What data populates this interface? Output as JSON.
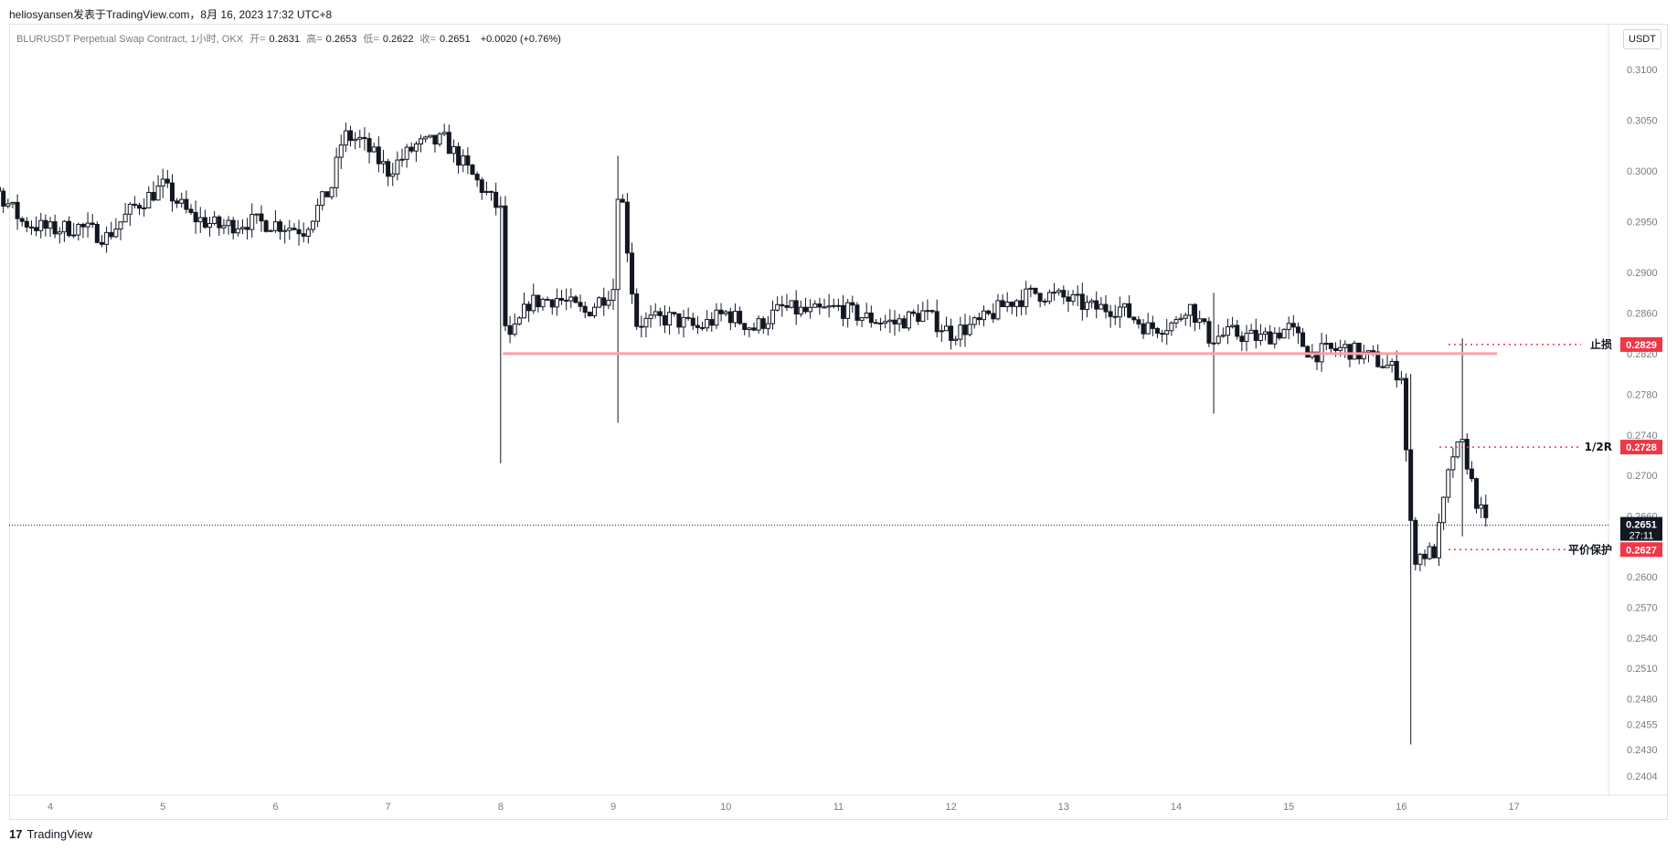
{
  "header": {
    "publisher": "heliosyansen发表于TradingView.com，8月 16, 2023 17:32 UTC+8"
  },
  "legend": {
    "symbol": "BLURUSDT Perpetual Swap Contract, 1小时, OKX",
    "open_label": "开=",
    "open": "0.2631",
    "high_label": "高=",
    "high": "0.2653",
    "low_label": "低=",
    "low": "0.2622",
    "close_label": "收=",
    "close": "0.2651",
    "change": "+0.0020 (+0.76%)"
  },
  "currency_button": "USDT",
  "footer": {
    "brand_logo": "17",
    "brand": "TradingView"
  },
  "chart_data": {
    "type": "candlestick",
    "yticks": [
      0.31,
      0.305,
      0.3,
      0.295,
      0.29,
      0.286,
      0.282,
      0.278,
      0.274,
      0.27,
      0.266,
      0.26,
      0.257,
      0.254,
      0.251,
      0.248,
      0.2455,
      0.243,
      0.2404
    ],
    "ylim": [
      0.2385,
      0.3145
    ],
    "xticks": [
      "4",
      "5",
      "6",
      "7",
      "8",
      "9",
      "10",
      "11",
      "12",
      "13",
      "14",
      "15",
      "16",
      "17"
    ],
    "last_price": "0.2651",
    "countdown": "27:11",
    "levels": [
      {
        "name": "止损",
        "label": "止损",
        "value": 0.2829,
        "price_label": "0.2829"
      },
      {
        "name": "1/2R",
        "label": "1/2R",
        "value": 0.2728,
        "price_label": "0.2728"
      },
      {
        "name": "平价保护",
        "label": "平价保护",
        "value": 0.2627,
        "price_label": "0.2627"
      }
    ],
    "support_line": 0.282,
    "close_path": [
      [
        3.0,
        0.2975
      ],
      [
        3.25,
        0.2978
      ],
      [
        3.5,
        0.2985
      ],
      [
        3.75,
        0.295
      ],
      [
        4.0,
        0.2942
      ],
      [
        4.25,
        0.2945
      ],
      [
        4.5,
        0.2935
      ],
      [
        4.75,
        0.2965
      ],
      [
        5.0,
        0.2985
      ],
      [
        5.25,
        0.2955
      ],
      [
        5.5,
        0.2945
      ],
      [
        5.75,
        0.295
      ],
      [
        6.0,
        0.2948
      ],
      [
        6.25,
        0.2942
      ],
      [
        6.5,
        0.2985
      ],
      [
        6.6,
        0.3035
      ],
      [
        6.75,
        0.303
      ],
      [
        7.0,
        0.3
      ],
      [
        7.25,
        0.3025
      ],
      [
        7.5,
        0.303
      ],
      [
        7.75,
        0.2995
      ],
      [
        8.0,
        0.296
      ],
      [
        8.05,
        0.2825
      ],
      [
        8.25,
        0.287
      ],
      [
        8.5,
        0.2875
      ],
      [
        8.75,
        0.286
      ],
      [
        9.0,
        0.2885
      ],
      [
        9.05,
        0.3
      ],
      [
        9.2,
        0.285
      ],
      [
        9.5,
        0.2855
      ],
      [
        9.75,
        0.2845
      ],
      [
        10.0,
        0.286
      ],
      [
        10.25,
        0.2845
      ],
      [
        10.5,
        0.2865
      ],
      [
        10.75,
        0.286
      ],
      [
        11.0,
        0.2865
      ],
      [
        11.25,
        0.2855
      ],
      [
        11.5,
        0.285
      ],
      [
        11.75,
        0.286
      ],
      [
        12.0,
        0.284
      ],
      [
        12.25,
        0.285
      ],
      [
        12.5,
        0.287
      ],
      [
        12.75,
        0.288
      ],
      [
        13.0,
        0.2875
      ],
      [
        13.25,
        0.2865
      ],
      [
        13.5,
        0.2865
      ],
      [
        13.75,
        0.2845
      ],
      [
        14.0,
        0.285
      ],
      [
        14.1,
        0.287
      ],
      [
        14.3,
        0.2835
      ],
      [
        14.5,
        0.284
      ],
      [
        14.75,
        0.2835
      ],
      [
        15.0,
        0.2845
      ],
      [
        15.2,
        0.282
      ],
      [
        15.5,
        0.2825
      ],
      [
        15.75,
        0.2815
      ],
      [
        16.0,
        0.28
      ],
      [
        16.1,
        0.262
      ],
      [
        16.3,
        0.2625
      ],
      [
        16.45,
        0.272
      ],
      [
        16.55,
        0.273
      ],
      [
        16.65,
        0.268
      ],
      [
        16.75,
        0.2651
      ]
    ]
  },
  "colors": {
    "candle": "#131722",
    "level": "#f23645",
    "support": "#f7a1a9",
    "last_price_bg": "#131722",
    "axis_text": "#787b86",
    "grid_border": "#e0e3eb"
  }
}
